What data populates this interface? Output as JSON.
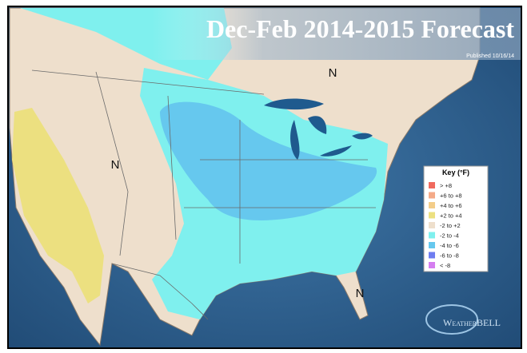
{
  "title": "Dec-Feb 2014-2015 Forecast",
  "published": "Published 10/16/14",
  "map_labels": [
    "N",
    "N",
    "N"
  ],
  "key": {
    "title": "Key (°F)",
    "entries": [
      {
        "label": "> +8",
        "color": "#f06a5e"
      },
      {
        "label": "+6 to +8",
        "color": "#f4aa88"
      },
      {
        "label": "+4 to +6",
        "color": "#f3cd8a"
      },
      {
        "label": "+2 to +4",
        "color": "#ece080"
      },
      {
        "label": "-2 to +2",
        "color": "#eedfcc"
      },
      {
        "label": "-2 to -4",
        "color": "#7ff0ee"
      },
      {
        "label": "-4 to -6",
        "color": "#66c8ee"
      },
      {
        "label": "-6 to -8",
        "color": "#6f7df0"
      },
      {
        "label": "< -8",
        "color": "#d57ef0"
      }
    ]
  },
  "logo": {
    "name": "WeatherBELL"
  }
}
